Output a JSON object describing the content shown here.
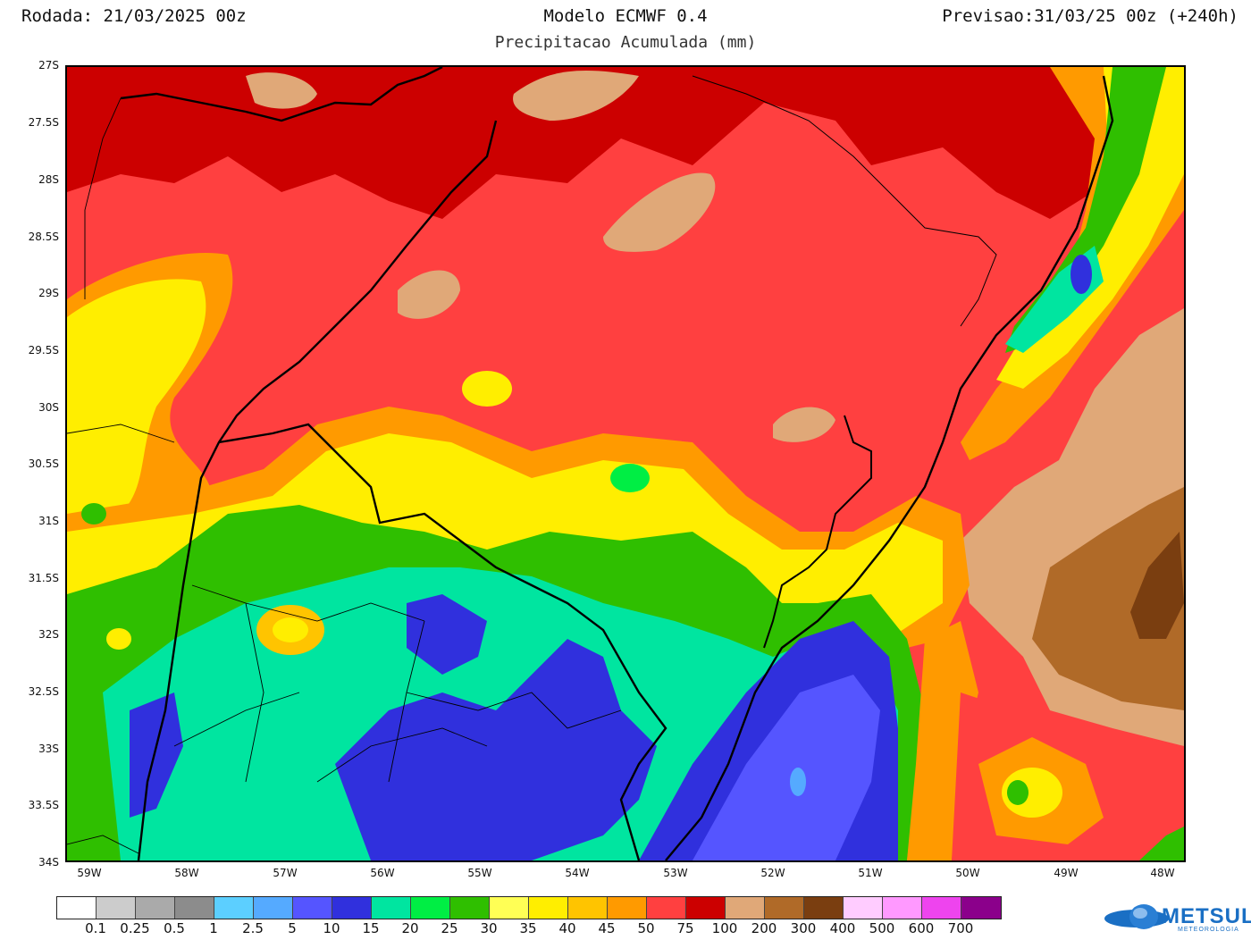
{
  "header": {
    "run": "Rodada: 21/03/2025 00z",
    "model": "Modelo ECMWF 0.4",
    "subtitle": "Precipitacao Acumulada (mm)",
    "forecast": "Previsao:31/03/25 00z (+240h)"
  },
  "map": {
    "lat_labels": [
      "27S",
      "27.5S",
      "28S",
      "28.5S",
      "29S",
      "29.5S",
      "30S",
      "30.5S",
      "31S",
      "31.5S",
      "32S",
      "32.5S",
      "33S",
      "33.5S",
      "34S"
    ],
    "lon_labels": [
      "59W",
      "58W",
      "57W",
      "56W",
      "55W",
      "54W",
      "53W",
      "52W",
      "51W",
      "50W",
      "49W",
      "48W"
    ],
    "field_colors": {
      "red": "#ff4040",
      "dark_red": "#cc0000",
      "tan": "#e0a878",
      "brown": "#b06a28",
      "dark_brown": "#7a3e10",
      "orange": "#ff9a00",
      "gold": "#ffc400",
      "yellow": "#ffee00",
      "light_yellow": "#ffff55",
      "green": "#2fbf00",
      "bright_green": "#00ee44",
      "teal": "#00e5a0",
      "blue": "#3030dd",
      "mid_blue": "#5555ff",
      "light_blue": "#55aaff"
    }
  },
  "legend": {
    "colors": [
      "#ffffff",
      "#cccccc",
      "#aaaaaa",
      "#8c8c8c",
      "#5ccfff",
      "#55aaff",
      "#5555ff",
      "#3030dd",
      "#00e5a0",
      "#00ee44",
      "#2fbf00",
      "#ffff55",
      "#ffee00",
      "#ffc400",
      "#ff9a00",
      "#ff4040",
      "#cc0000",
      "#e0a878",
      "#b06a28",
      "#7a3e10",
      "#ffccff",
      "#ff99ff",
      "#ee44ee",
      "#8b008b"
    ],
    "labels": [
      "0.1",
      "0.25",
      "0.5",
      "1",
      "2.5",
      "5",
      "10",
      "15",
      "20",
      "25",
      "30",
      "35",
      "40",
      "45",
      "50",
      "75",
      "100",
      "200",
      "300",
      "400",
      "500",
      "600",
      "700"
    ]
  },
  "logo": {
    "name": "METSUL",
    "sub": "METEOROLOGIA"
  }
}
